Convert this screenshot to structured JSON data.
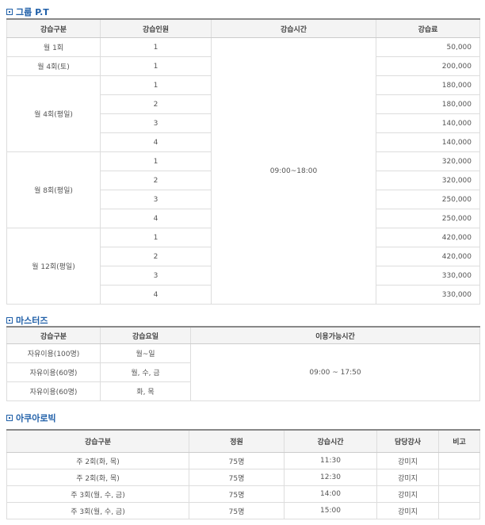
{
  "sections": [
    {
      "title": "그룹 P.T",
      "headers": [
        "강습구분",
        "강습인원",
        "강습시간",
        "강습료"
      ],
      "time": "09:00~18:00",
      "groups": [
        {
          "label": "월 1회",
          "rows": [
            {
              "people": "1",
              "fee": "50,000"
            }
          ]
        },
        {
          "label": "월 4회(토)",
          "rows": [
            {
              "people": "1",
              "fee": "200,000"
            }
          ]
        },
        {
          "label": "월 4회(평일)",
          "rows": [
            {
              "people": "1",
              "fee": "180,000"
            },
            {
              "people": "2",
              "fee": "180,000"
            },
            {
              "people": "3",
              "fee": "140,000"
            },
            {
              "people": "4",
              "fee": "140,000"
            }
          ]
        },
        {
          "label": "월 8회(평일)",
          "rows": [
            {
              "people": "1",
              "fee": "320,000"
            },
            {
              "people": "2",
              "fee": "320,000"
            },
            {
              "people": "3",
              "fee": "250,000"
            },
            {
              "people": "4",
              "fee": "250,000"
            }
          ]
        },
        {
          "label": "월 12회(평일)",
          "rows": [
            {
              "people": "1",
              "fee": "420,000"
            },
            {
              "people": "2",
              "fee": "420,000"
            },
            {
              "people": "3",
              "fee": "330,000"
            },
            {
              "people": "4",
              "fee": "330,000"
            }
          ]
        }
      ]
    },
    {
      "title": "마스터즈",
      "headers": [
        "강습구분",
        "강습요일",
        "이용가능시간"
      ],
      "time": "09:00 ~ 17:50",
      "rows": [
        {
          "type": "자유이용(100명)",
          "days": "월~일"
        },
        {
          "type": "자유이용(60명)",
          "days": "월, 수, 금"
        },
        {
          "type": "자유이용(60명)",
          "days": "화, 목"
        }
      ]
    },
    {
      "title": "아쿠아로빅",
      "headers": [
        "강습구분",
        "정원",
        "강습시간",
        "담당강사",
        "비고"
      ],
      "rows": [
        {
          "type": "주 2회(화, 목)",
          "capacity": "75명",
          "time": "11:30",
          "instructor": "강미지",
          "note": ""
        },
        {
          "type": "주 2회(화, 목)",
          "capacity": "75명",
          "time": "12:30",
          "instructor": "강미지",
          "note": ""
        },
        {
          "type": "주 3회(월, 수, 금)",
          "capacity": "75명",
          "time": "14:00",
          "instructor": "강미지",
          "note": ""
        },
        {
          "type": "주 3회(월, 수, 금)",
          "capacity": "75명",
          "time": "15:00",
          "instructor": "강미지",
          "note": ""
        }
      ]
    }
  ],
  "colors": {
    "title": "#1f5fa8",
    "header_bg": "#f4f4f4",
    "border": "#dddddd"
  },
  "icons": {
    "section_bullet": "square-bullet-icon"
  }
}
